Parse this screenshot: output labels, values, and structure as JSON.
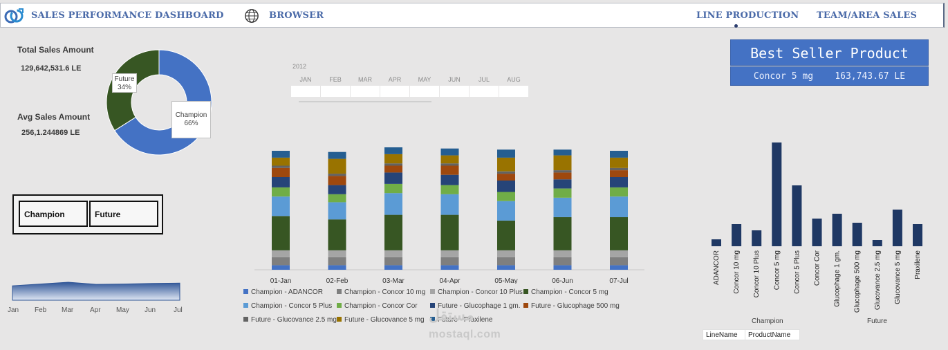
{
  "header": {
    "title": "SALES PERFORMANCE DASHBOARD",
    "browser": "BROWSER",
    "line_production": "LINE PRODUCTION",
    "team_area_sales": "TEAM/AREA SALES"
  },
  "kpis": {
    "total_label": "Total Sales Amount",
    "total_value": "129,642,531.6 LE",
    "avg_label": "Avg  Sales Amount",
    "avg_value": "256,1.244869  LE"
  },
  "donut": {
    "slices": [
      {
        "name": "Champion",
        "pct_label": "66%",
        "value": 66,
        "color": "#4472c4"
      },
      {
        "name": "Future",
        "pct_label": "34%",
        "value": 34,
        "color": "#375623"
      }
    ]
  },
  "slicer": {
    "items": [
      "Champion",
      "Future"
    ]
  },
  "area_trend": {
    "months": [
      "Jan",
      "Feb",
      "Mar",
      "Apr",
      "May",
      "Jun",
      "Jul"
    ],
    "values": [
      0.8,
      0.9,
      1.0,
      0.88,
      0.9,
      0.93,
      0.95
    ],
    "color": "#2f5597"
  },
  "timeline": {
    "year": "2012",
    "months": [
      "JAN",
      "FEB",
      "MAR",
      "APR",
      "MAY",
      "JUN",
      "JUL",
      "AUG"
    ]
  },
  "chart_data": [
    {
      "type": "bar",
      "stacked": true,
      "categories": [
        "01-Jan",
        "02-Feb",
        "03-Mar",
        "04-Apr",
        "05-May",
        "06-Jun",
        "07-Jul"
      ],
      "series": [
        {
          "name": "Champion - ADANCOR",
          "color": "#4472c4",
          "values": [
            4,
            4,
            4,
            4,
            4,
            4,
            4
          ]
        },
        {
          "name": "Champion - Concor 10 mg",
          "color": "#7f7f7f",
          "values": [
            7,
            7,
            7,
            7,
            7,
            7,
            7
          ]
        },
        {
          "name": "Champion - Concor 10 Plus",
          "color": "#a5a5a5",
          "values": [
            6,
            6,
            6,
            6,
            6,
            6,
            6
          ]
        },
        {
          "name": "Champion - Concor 5 mg",
          "color": "#375623",
          "values": [
            30,
            27,
            31,
            31,
            26,
            29,
            29
          ]
        },
        {
          "name": "Champion - Concor 5 Plus",
          "color": "#5b9bd5",
          "values": [
            17,
            15,
            19,
            18,
            17,
            17,
            18
          ]
        },
        {
          "name": "Champion - Concor Cor",
          "color": "#70ad47",
          "values": [
            8,
            7,
            8,
            8,
            8,
            8,
            8
          ]
        },
        {
          "name": "Future - Glucophage 1 gm.",
          "color": "#264478",
          "values": [
            9,
            8,
            10,
            9,
            10,
            8,
            9
          ]
        },
        {
          "name": "Future - Glucophage 500 mg",
          "color": "#9e480e",
          "values": [
            8,
            8,
            6,
            8,
            6,
            6,
            6
          ]
        },
        {
          "name": "Future - Glucovance 2.5 mg",
          "color": "#636363",
          "values": [
            2,
            2,
            2,
            2,
            2,
            2,
            2
          ]
        },
        {
          "name": "Future - Glucovance 5 mg",
          "color": "#997300",
          "values": [
            7,
            13,
            8,
            7,
            12,
            13,
            9
          ]
        },
        {
          "name": "Future - Praxilene",
          "color": "#255e91",
          "values": [
            6,
            6,
            6,
            6,
            7,
            5,
            6
          ]
        }
      ]
    },
    {
      "type": "bar",
      "categories": [
        "ADANCOR",
        "Concor 10 mg",
        "Concor 10 Plus",
        "Concor 5 mg",
        "Concor 5 Plus",
        "Concor Cor",
        "Glucophage 1 gm.",
        "Glucophage 500 mg",
        "Glucovance 2.5 mg",
        "Glucovance 5 mg",
        "Praxilene"
      ],
      "values": [
        10,
        32,
        23,
        150,
        88,
        40,
        47,
        34,
        9,
        53,
        32
      ],
      "color": "#1f3864",
      "groups": [
        {
          "label": "Champion"
        },
        {
          "label": "Future"
        }
      ]
    }
  ],
  "best_seller": {
    "title": "Best Seller Product",
    "product": "Concor 5 mg",
    "amount": "163,743.67 LE"
  },
  "pivot_fields": {
    "line_name": "LineName",
    "product_name": "ProductName"
  },
  "watermark": {
    "arabic": "مستقل",
    "latin": "mostaql.com"
  }
}
